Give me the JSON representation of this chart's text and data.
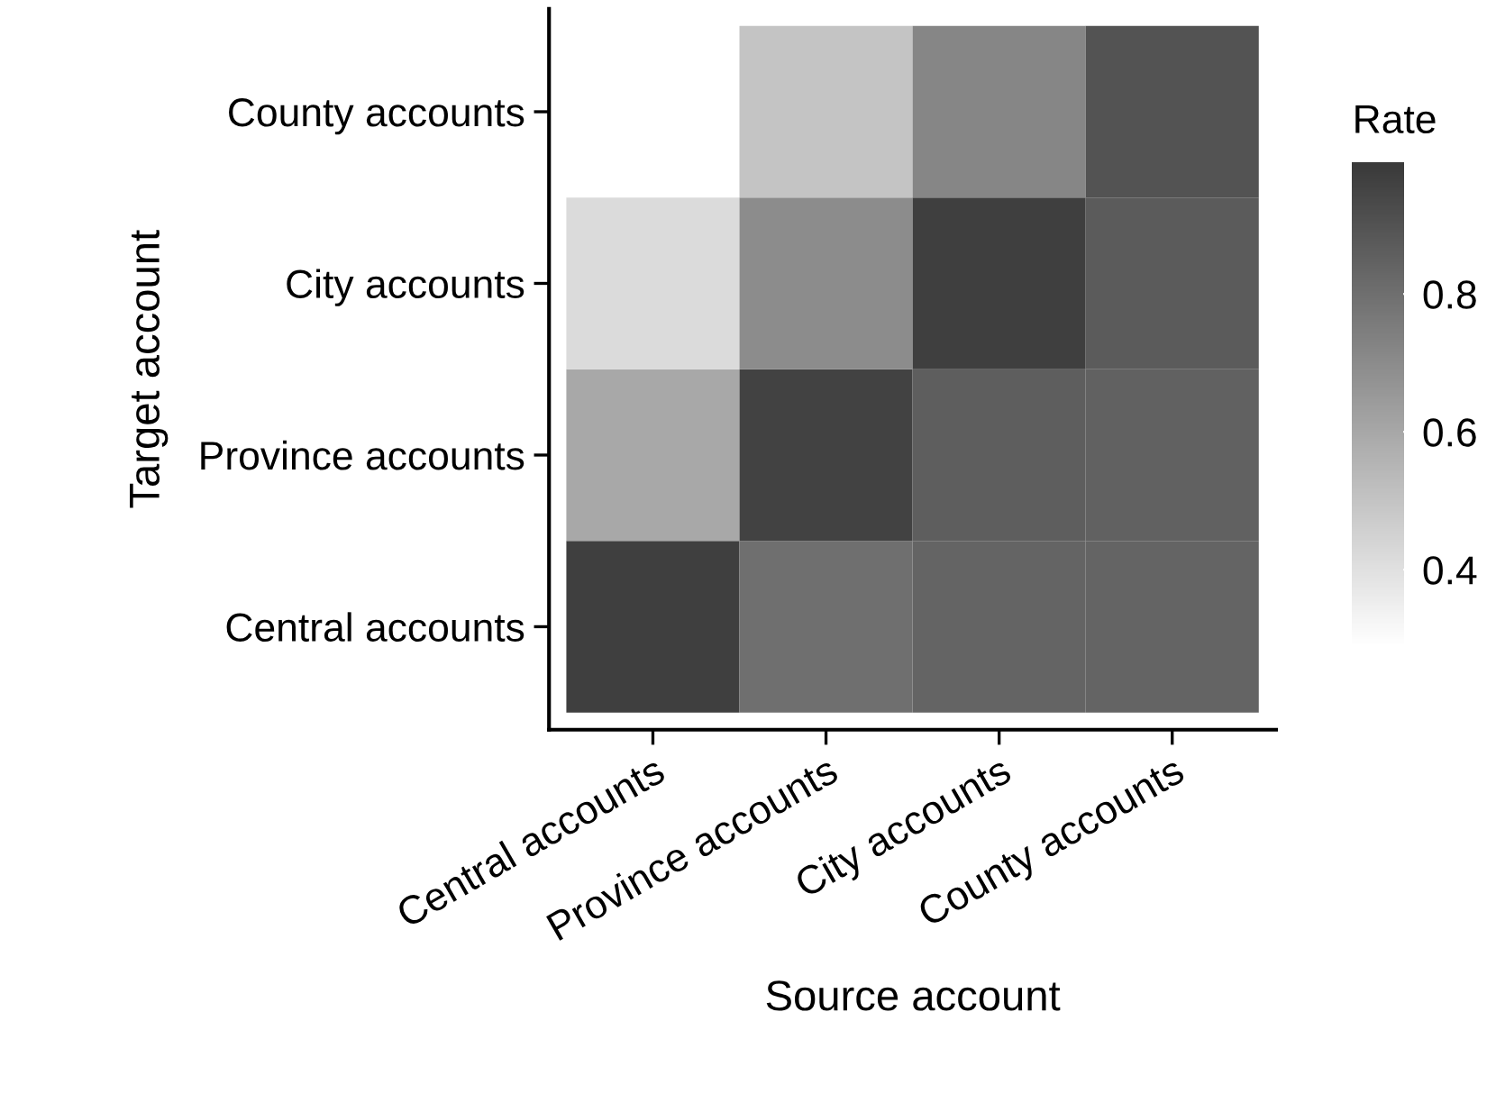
{
  "chart_data": {
    "type": "heatmap",
    "xlabel": "Source account",
    "ylabel": "Target account",
    "clabel": "Rate",
    "categories": [
      "Central accounts",
      "Province accounts",
      "City accounts",
      "County accounts"
    ],
    "y_categories": [
      "County accounts",
      "City accounts",
      "Province accounts",
      "Central accounts"
    ],
    "cells": [
      [
        null,
        0.5,
        0.72,
        0.9
      ],
      [
        0.42,
        0.7,
        0.97,
        0.87
      ],
      [
        0.6,
        0.96,
        0.86,
        0.85
      ],
      [
        0.97,
        0.8,
        0.84,
        0.84
      ]
    ],
    "clim": [
      0.29,
      0.99
    ],
    "cticks": [
      0.4,
      0.6,
      0.8
    ],
    "grid": false
  }
}
